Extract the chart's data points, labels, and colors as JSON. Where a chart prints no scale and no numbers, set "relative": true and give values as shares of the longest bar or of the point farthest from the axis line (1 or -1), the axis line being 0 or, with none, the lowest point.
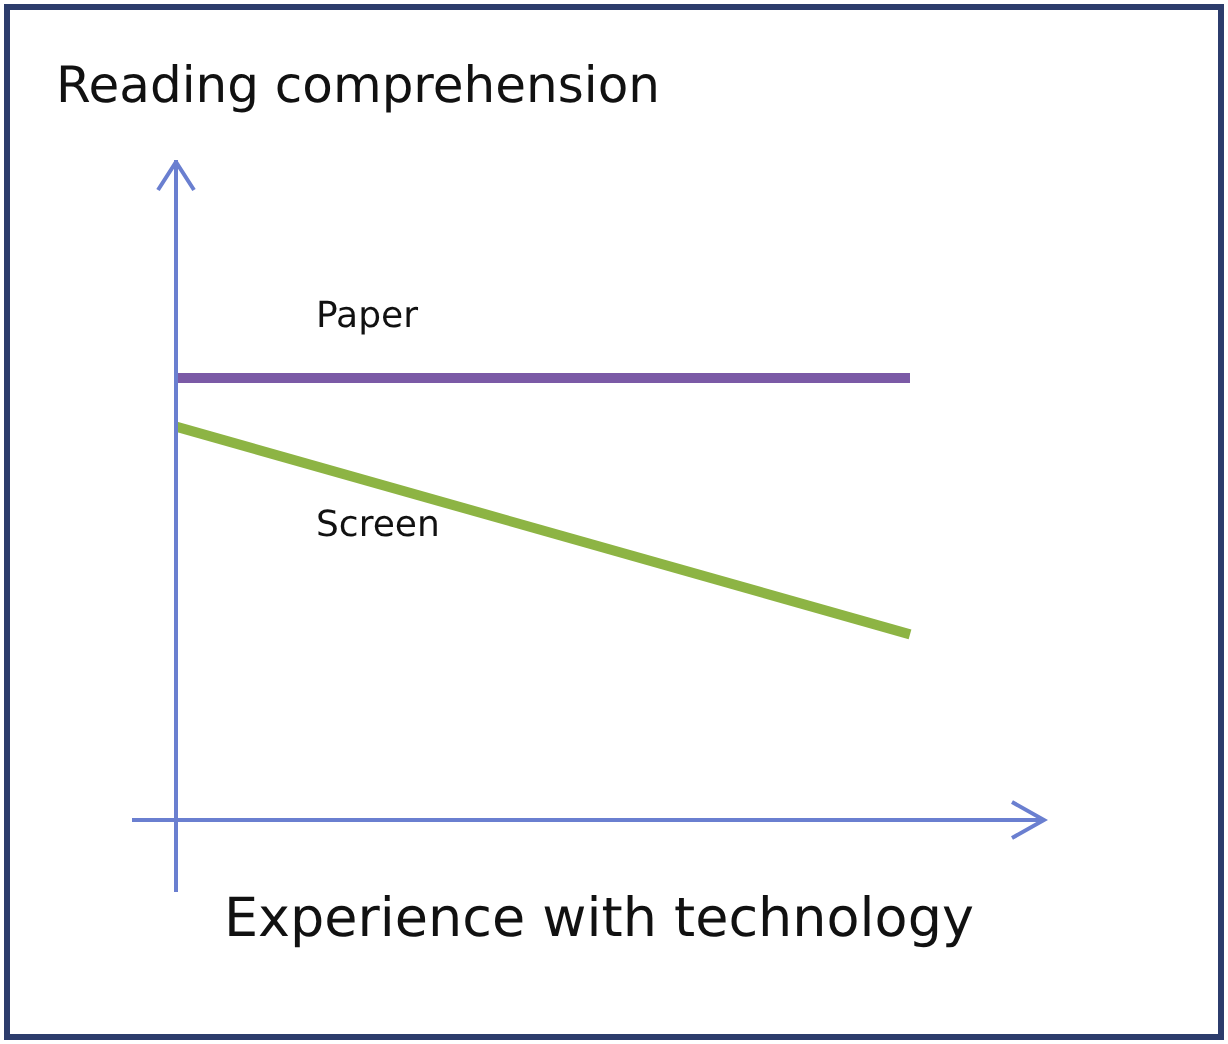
{
  "chart_data": {
    "type": "line",
    "title": "Reading comprehension",
    "xlabel": "Experience with technology",
    "relative": true,
    "categories": [
      null,
      null
    ],
    "series": [
      {
        "name": "Paper",
        "color": "#7b5aa6",
        "values": [
          1,
          1
        ]
      },
      {
        "name": "Screen",
        "color": "#8db444",
        "values": [
          0.89,
          0.42
        ]
      }
    ],
    "legend": false,
    "marker": "none"
  }
}
